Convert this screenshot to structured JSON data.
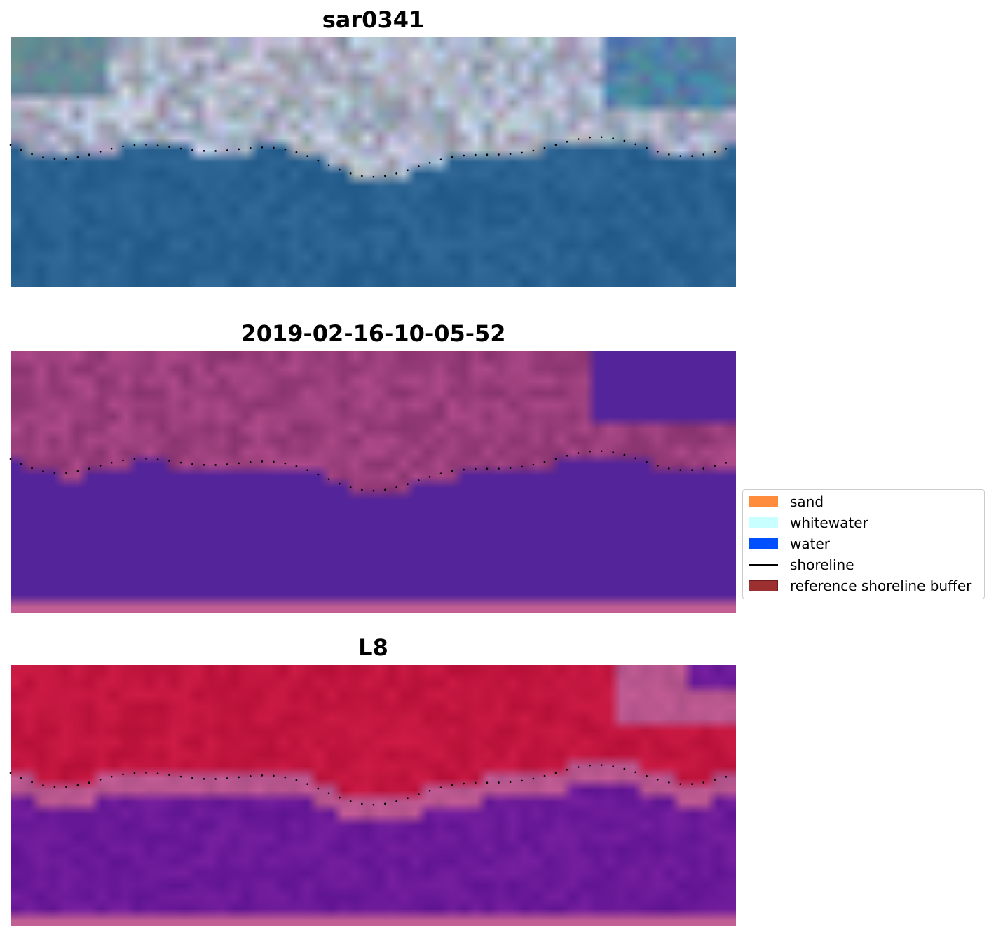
{
  "panels": [
    {
      "title": "sar0341",
      "kind": "rgb"
    },
    {
      "title": "2019-02-16-10-05-52",
      "kind": "classified"
    },
    {
      "title": "L8",
      "kind": "buffer"
    }
  ],
  "legend": {
    "items": [
      {
        "label": "sand",
        "color": "#ff8c3c",
        "type": "patch"
      },
      {
        "label": "whitewater",
        "color": "#c8ffff",
        "type": "patch"
      },
      {
        "label": "water",
        "color": "#0050ff",
        "type": "patch"
      },
      {
        "label": "shoreline",
        "color": "#000000",
        "type": "line"
      },
      {
        "label": "reference shoreline buffer",
        "color": "#9c2f30",
        "type": "patch",
        "edge": "#6e1a1a"
      }
    ]
  },
  "colors": {
    "ocean": "#245887",
    "classified_water": "#53249a",
    "classified_land": "#9b3f7c",
    "buffer_land": "#c2163f",
    "buffer_water": "#6b1a98",
    "buffer_band": "#b9578f",
    "nodata_strip": "#c15f94"
  }
}
